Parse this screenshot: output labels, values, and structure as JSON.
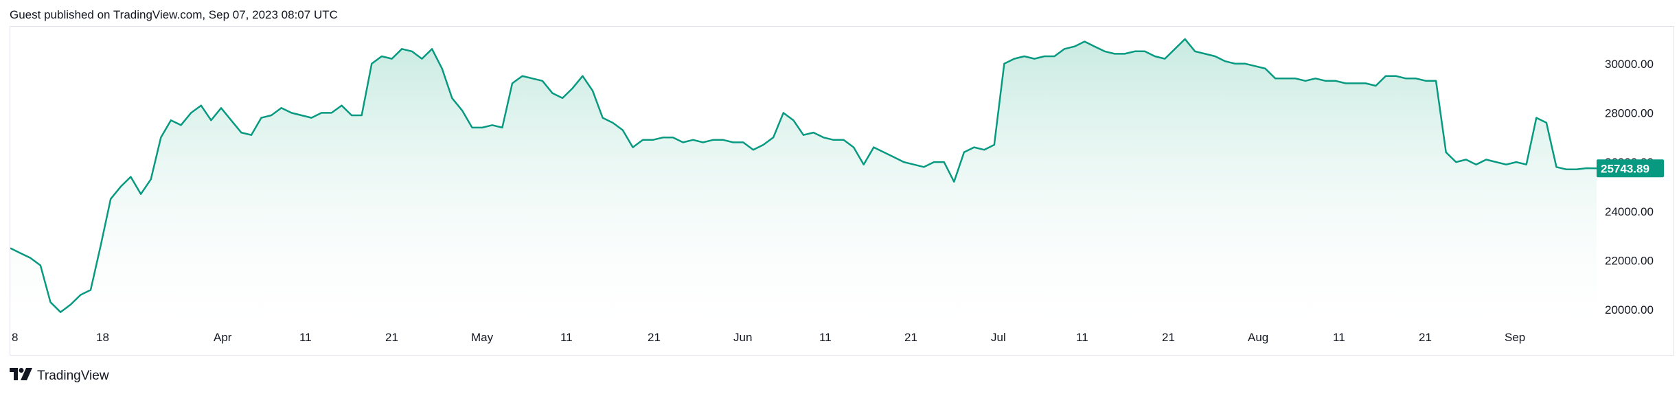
{
  "header": {
    "text": "Guest published on TradingView.com, Sep 07, 2023 08:07 UTC"
  },
  "footer": {
    "brand": "TradingView",
    "logo_icon": "tradingview-logo-icon"
  },
  "colors": {
    "line": "#089981",
    "fill_top": "#bfe7dc",
    "badge": "#089981"
  },
  "chart_data": {
    "type": "area",
    "title": "",
    "xlabel": "",
    "ylabel": "",
    "ylim": [
      19500,
      31500
    ],
    "y_ticks": [
      "30000.00",
      "28000.00",
      "26000.00",
      "24000.00",
      "22000.00",
      "20000.00"
    ],
    "x_ticks": [
      "8",
      "18",
      "Apr",
      "11",
      "21",
      "May",
      "11",
      "21",
      "Jun",
      "11",
      "21",
      "Jul",
      "11",
      "21",
      "Aug",
      "11",
      "21",
      "Sep"
    ],
    "last_price": "25743.89",
    "grid": false,
    "series": [
      {
        "values": [
          22500,
          22300,
          22100,
          21800,
          20300,
          19900,
          20200,
          20600,
          20800,
          22600,
          24500,
          25000,
          25400,
          24700,
          25300,
          27000,
          27700,
          27500,
          28000,
          28300,
          27700,
          28200,
          27700,
          27200,
          27100,
          27800,
          27900,
          28200,
          28000,
          27900,
          27800,
          28000,
          28000,
          28300,
          27900,
          27900,
          30000,
          30300,
          30200,
          30600,
          30500,
          30200,
          30600,
          29800,
          28600,
          28100,
          27400,
          27400,
          27500,
          27400,
          29200,
          29500,
          29400,
          29300,
          28800,
          28600,
          29000,
          29500,
          28900,
          27800,
          27600,
          27300,
          26600,
          26900,
          26900,
          27000,
          27000,
          26800,
          26900,
          26800,
          26900,
          26900,
          26800,
          26800,
          26500,
          26700,
          27000,
          28000,
          27700,
          27100,
          27200,
          27000,
          26900,
          26900,
          26600,
          25900,
          26600,
          26400,
          26200,
          26000,
          25900,
          25800,
          26000,
          26000,
          25200,
          26400,
          26600,
          26500,
          26700,
          30000,
          30200,
          30300,
          30200,
          30300,
          30300,
          30600,
          30700,
          30900,
          30700,
          30500,
          30400,
          30400,
          30500,
          30500,
          30300,
          30200,
          30600,
          31000,
          30500,
          30400,
          30300,
          30100,
          30000,
          30000,
          29900,
          29800,
          29400,
          29400,
          29400,
          29300,
          29400,
          29300,
          29300,
          29200,
          29200,
          29200,
          29100,
          29500,
          29500,
          29400,
          29400,
          29300,
          29300,
          26400,
          26000,
          26100,
          25900,
          26100,
          26000,
          25900,
          26000,
          25900,
          27800,
          27600,
          25800,
          25700,
          25700,
          25750,
          25743.89
        ]
      }
    ]
  }
}
